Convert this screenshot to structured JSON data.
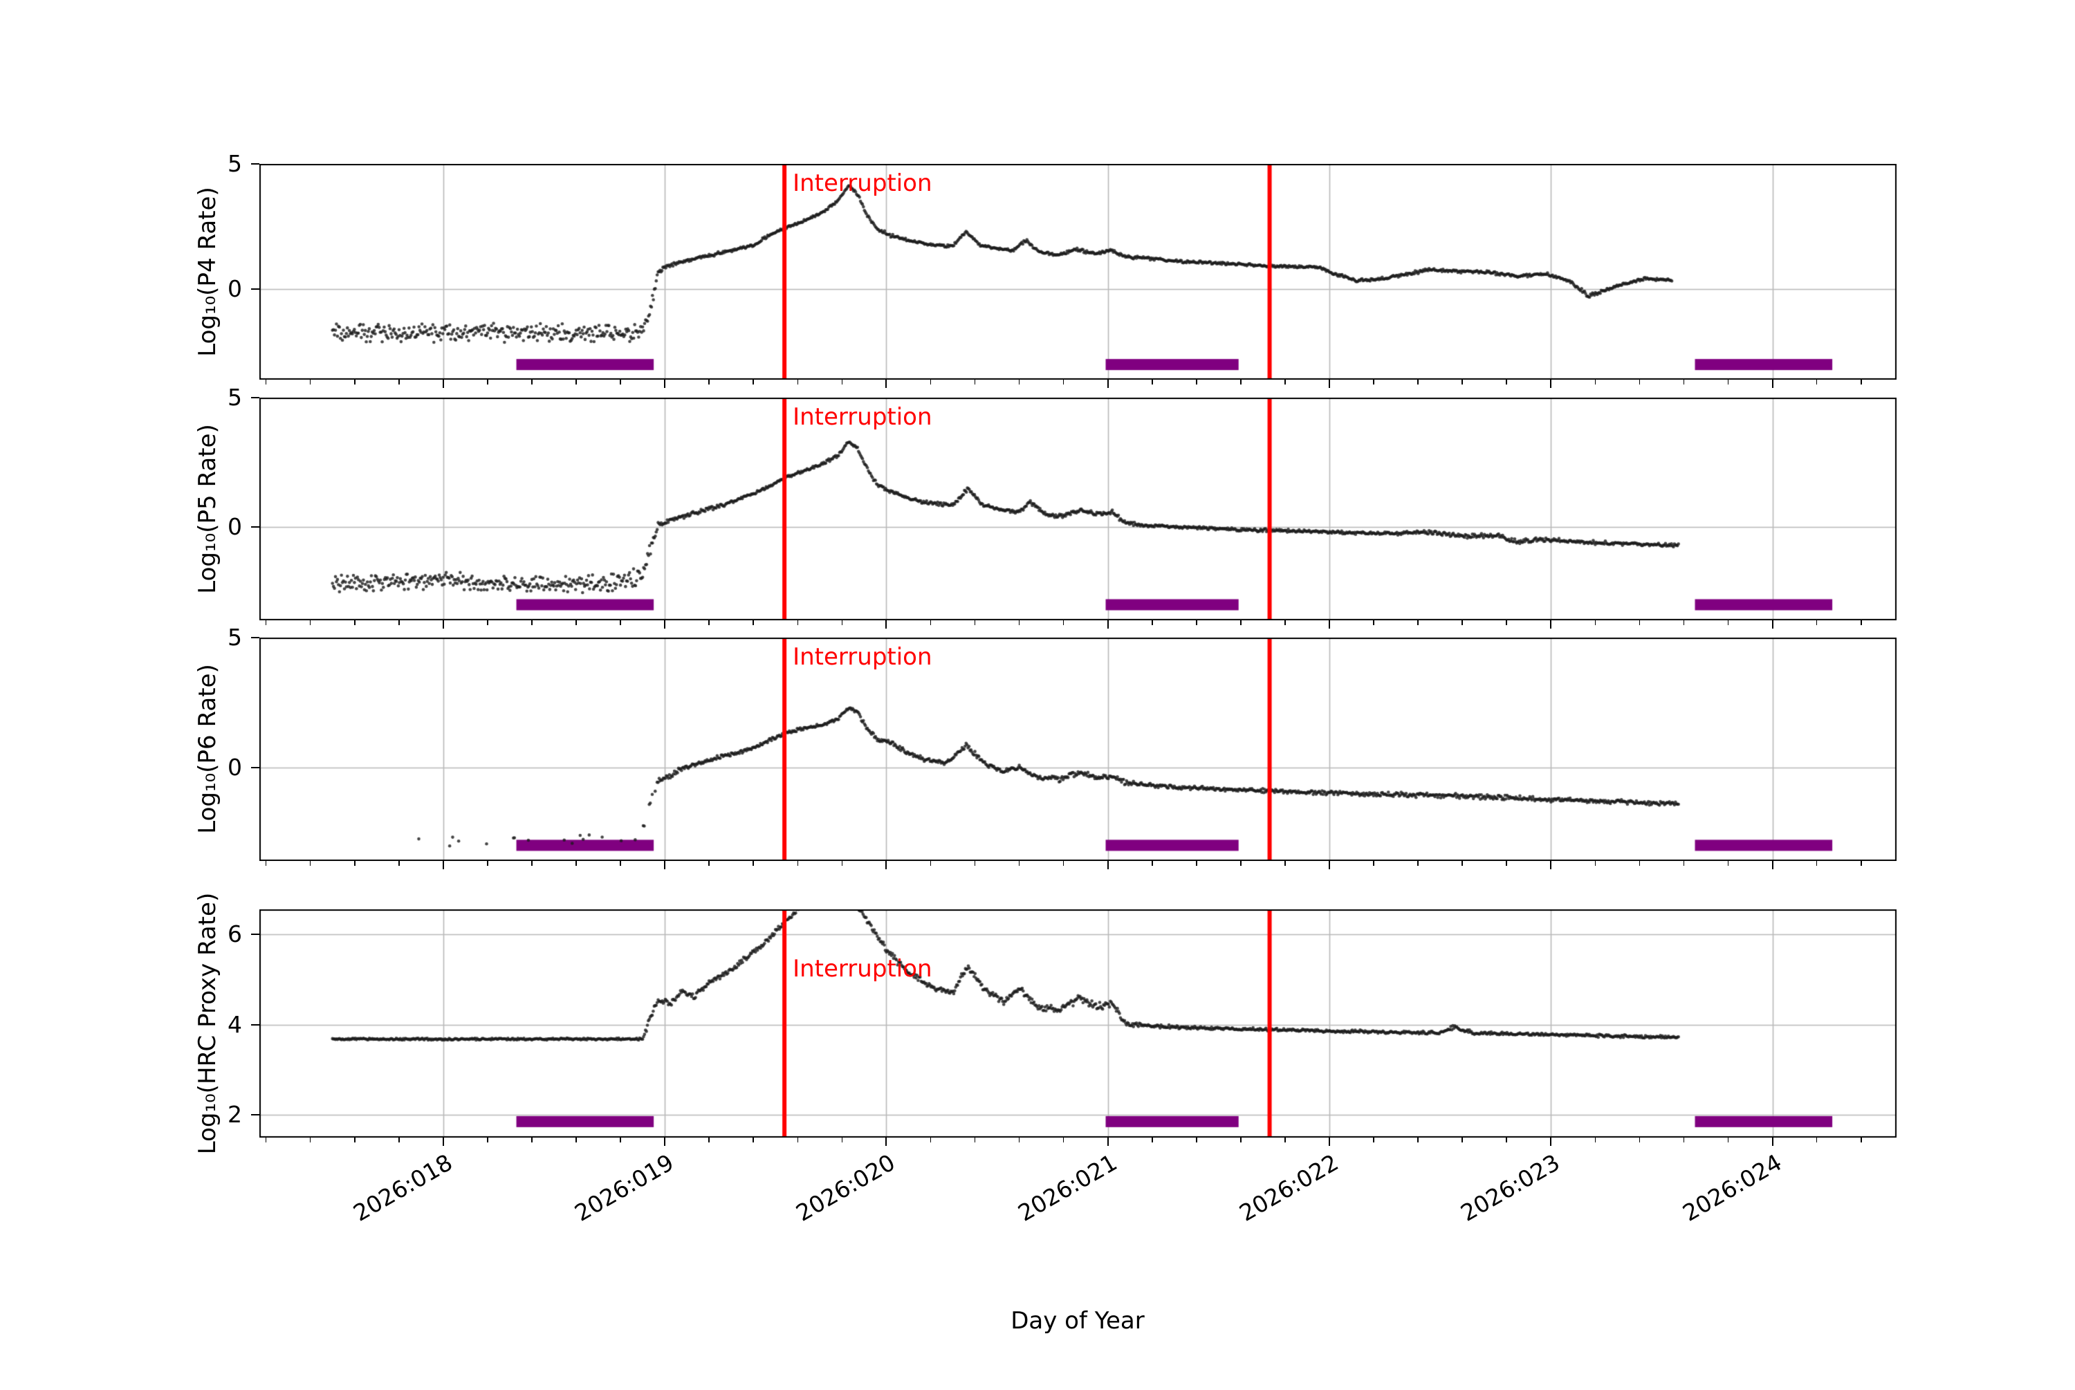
{
  "figure": {
    "xlabel": "Day of Year",
    "background": "#ffffff",
    "x_range": [
      17.17,
      24.56
    ],
    "x_major_ticks": [
      {
        "value": 18,
        "label": "2026:018"
      },
      {
        "value": 19,
        "label": "2026:019"
      },
      {
        "value": 20,
        "label": "2026:020"
      },
      {
        "value": 21,
        "label": "2026:021"
      },
      {
        "value": 22,
        "label": "2026:022"
      },
      {
        "value": 23,
        "label": "2026:023"
      },
      {
        "value": 24,
        "label": "2026:024"
      }
    ],
    "x_minor_tick_step": 0.2,
    "grid": true,
    "grid_color": "#b8b8b8",
    "marker_color": "#1a1a1a",
    "annotation_label": "Interruption",
    "annotation_color": "#ff0000",
    "interruption_lines_x": [
      19.54,
      21.73
    ],
    "support_bar_color": "#800080",
    "support_bar_x_ranges": [
      [
        18.33,
        18.95
      ],
      [
        20.99,
        21.59
      ],
      [
        23.65,
        24.27
      ]
    ]
  },
  "chart_data": [
    {
      "type": "scatter",
      "ylabel": "Log₁₀(P4 Rate)",
      "ylim": [
        -3.6,
        5
      ],
      "y_ticks": [
        0,
        5
      ],
      "annotation_y_frac": 0.025,
      "keypoints": [
        [
          17.5,
          -1.75,
          0.33
        ],
        [
          18.2,
          -1.72,
          0.33
        ],
        [
          18.6,
          -1.78,
          0.33
        ],
        [
          18.9,
          -1.7,
          0.33
        ],
        [
          18.94,
          -0.6,
          0.25
        ],
        [
          18.97,
          0.7,
          0.1
        ],
        [
          19.0,
          0.9,
          0.06
        ],
        [
          19.06,
          1.05,
          0.05
        ],
        [
          19.15,
          1.25,
          0.05
        ],
        [
          19.25,
          1.45,
          0.06
        ],
        [
          19.32,
          1.6,
          0.05
        ],
        [
          19.4,
          1.75,
          0.05
        ],
        [
          19.46,
          2.1,
          0.05
        ],
        [
          19.54,
          2.45,
          0.05
        ],
        [
          19.62,
          2.7,
          0.05
        ],
        [
          19.7,
          3.0,
          0.05
        ],
        [
          19.78,
          3.5,
          0.05
        ],
        [
          19.83,
          4.15,
          0.04
        ],
        [
          19.87,
          3.8,
          0.05
        ],
        [
          19.91,
          3.0,
          0.06
        ],
        [
          19.96,
          2.4,
          0.06
        ],
        [
          20.02,
          2.15,
          0.06
        ],
        [
          20.1,
          1.95,
          0.05
        ],
        [
          20.2,
          1.78,
          0.05
        ],
        [
          20.3,
          1.72,
          0.05
        ],
        [
          20.36,
          2.3,
          0.06
        ],
        [
          20.42,
          1.78,
          0.05
        ],
        [
          20.5,
          1.62,
          0.05
        ],
        [
          20.57,
          1.55,
          0.05
        ],
        [
          20.63,
          1.95,
          0.06
        ],
        [
          20.69,
          1.5,
          0.05
        ],
        [
          20.78,
          1.38,
          0.06
        ],
        [
          20.87,
          1.6,
          0.07
        ],
        [
          20.94,
          1.42,
          0.06
        ],
        [
          21.02,
          1.55,
          0.06
        ],
        [
          21.08,
          1.3,
          0.05
        ],
        [
          21.2,
          1.22,
          0.05
        ],
        [
          21.35,
          1.1,
          0.05
        ],
        [
          21.55,
          1.02,
          0.05
        ],
        [
          21.75,
          0.92,
          0.05
        ],
        [
          21.95,
          0.88,
          0.05
        ],
        [
          22.03,
          0.6,
          0.06
        ],
        [
          22.12,
          0.35,
          0.07
        ],
        [
          22.22,
          0.4,
          0.06
        ],
        [
          22.32,
          0.55,
          0.06
        ],
        [
          22.45,
          0.78,
          0.06
        ],
        [
          22.58,
          0.72,
          0.05
        ],
        [
          22.72,
          0.68,
          0.06
        ],
        [
          22.85,
          0.52,
          0.07
        ],
        [
          22.98,
          0.62,
          0.06
        ],
        [
          23.08,
          0.35,
          0.06
        ],
        [
          23.17,
          -0.28,
          0.08
        ],
        [
          23.24,
          -0.05,
          0.07
        ],
        [
          23.32,
          0.18,
          0.06
        ],
        [
          23.42,
          0.42,
          0.05
        ],
        [
          23.55,
          0.35,
          0.05
        ]
      ]
    },
    {
      "type": "scatter",
      "ylabel": "Log₁₀(P5 Rate)",
      "ylim": [
        -3.6,
        5
      ],
      "y_ticks": [
        0,
        5
      ],
      "annotation_y_frac": 0.025,
      "keypoints": [
        [
          17.5,
          -2.2,
          0.3
        ],
        [
          18.0,
          -2.05,
          0.3
        ],
        [
          18.4,
          -2.25,
          0.3
        ],
        [
          18.75,
          -2.15,
          0.32
        ],
        [
          18.9,
          -1.9,
          0.32
        ],
        [
          18.94,
          -0.8,
          0.25
        ],
        [
          18.97,
          0.1,
          0.1
        ],
        [
          19.02,
          0.25,
          0.08
        ],
        [
          19.1,
          0.45,
          0.08
        ],
        [
          19.2,
          0.7,
          0.07
        ],
        [
          19.3,
          0.95,
          0.06
        ],
        [
          19.4,
          1.3,
          0.06
        ],
        [
          19.48,
          1.6,
          0.05
        ],
        [
          19.54,
          1.9,
          0.05
        ],
        [
          19.62,
          2.15,
          0.05
        ],
        [
          19.7,
          2.4,
          0.05
        ],
        [
          19.78,
          2.75,
          0.05
        ],
        [
          19.83,
          3.3,
          0.04
        ],
        [
          19.87,
          3.05,
          0.05
        ],
        [
          19.91,
          2.3,
          0.07
        ],
        [
          19.96,
          1.6,
          0.08
        ],
        [
          20.02,
          1.4,
          0.07
        ],
        [
          20.1,
          1.1,
          0.06
        ],
        [
          20.2,
          0.92,
          0.06
        ],
        [
          20.3,
          0.85,
          0.06
        ],
        [
          20.37,
          1.5,
          0.07
        ],
        [
          20.43,
          0.88,
          0.06
        ],
        [
          20.52,
          0.65,
          0.06
        ],
        [
          20.6,
          0.58,
          0.07
        ],
        [
          20.65,
          0.95,
          0.08
        ],
        [
          20.72,
          0.5,
          0.07
        ],
        [
          20.8,
          0.42,
          0.09
        ],
        [
          20.88,
          0.68,
          0.09
        ],
        [
          20.95,
          0.48,
          0.09
        ],
        [
          21.02,
          0.58,
          0.08
        ],
        [
          21.08,
          0.15,
          0.06
        ],
        [
          21.2,
          0.05,
          0.05
        ],
        [
          21.4,
          -0.02,
          0.05
        ],
        [
          21.6,
          -0.1,
          0.05
        ],
        [
          21.85,
          -0.15,
          0.05
        ],
        [
          22.1,
          -0.22,
          0.05
        ],
        [
          22.3,
          -0.26,
          0.06
        ],
        [
          22.45,
          -0.18,
          0.07
        ],
        [
          22.6,
          -0.35,
          0.07
        ],
        [
          22.75,
          -0.32,
          0.08
        ],
        [
          22.85,
          -0.58,
          0.09
        ],
        [
          22.95,
          -0.48,
          0.07
        ],
        [
          23.1,
          -0.55,
          0.06
        ],
        [
          23.25,
          -0.62,
          0.07
        ],
        [
          23.4,
          -0.66,
          0.06
        ],
        [
          23.58,
          -0.7,
          0.06
        ]
      ]
    },
    {
      "type": "scatter",
      "ylabel": "Log₁₀(P6 Rate)",
      "ylim": [
        -3.6,
        5
      ],
      "y_ticks": [
        0,
        5
      ],
      "annotation_y_frac": 0.025,
      "keypoints": [
        [
          17.75,
          -2.8,
          0.18,
          0.05
        ],
        [
          18.2,
          -2.85,
          0.18,
          0.05
        ],
        [
          18.6,
          -2.8,
          0.18,
          0.06
        ],
        [
          18.88,
          -2.75,
          0.2,
          0.08
        ],
        [
          18.93,
          -1.6,
          0.25,
          0.5
        ],
        [
          18.97,
          -0.5,
          0.12,
          1
        ],
        [
          19.03,
          -0.3,
          0.1
        ],
        [
          19.08,
          0.0,
          0.09
        ],
        [
          19.15,
          0.15,
          0.08
        ],
        [
          19.25,
          0.4,
          0.07
        ],
        [
          19.35,
          0.6,
          0.07
        ],
        [
          19.45,
          0.95,
          0.06
        ],
        [
          19.54,
          1.3,
          0.06
        ],
        [
          19.62,
          1.5,
          0.06
        ],
        [
          19.7,
          1.62,
          0.06
        ],
        [
          19.78,
          1.85,
          0.06
        ],
        [
          19.83,
          2.3,
          0.05
        ],
        [
          19.87,
          2.15,
          0.06
        ],
        [
          19.91,
          1.5,
          0.08
        ],
        [
          19.96,
          1.1,
          0.08
        ],
        [
          20.03,
          0.9,
          0.08
        ],
        [
          20.1,
          0.55,
          0.08
        ],
        [
          20.18,
          0.3,
          0.08
        ],
        [
          20.27,
          0.18,
          0.08
        ],
        [
          20.36,
          0.85,
          0.08
        ],
        [
          20.44,
          0.18,
          0.08
        ],
        [
          20.53,
          -0.18,
          0.08
        ],
        [
          20.6,
          0.02,
          0.09
        ],
        [
          20.68,
          -0.35,
          0.08
        ],
        [
          20.78,
          -0.45,
          0.1
        ],
        [
          20.87,
          -0.18,
          0.1
        ],
        [
          20.95,
          -0.42,
          0.1
        ],
        [
          21.02,
          -0.32,
          0.09
        ],
        [
          21.08,
          -0.58,
          0.08
        ],
        [
          21.2,
          -0.7,
          0.07
        ],
        [
          21.4,
          -0.8,
          0.07
        ],
        [
          21.65,
          -0.88,
          0.07
        ],
        [
          21.9,
          -0.95,
          0.07
        ],
        [
          22.15,
          -1.02,
          0.08
        ],
        [
          22.4,
          -1.06,
          0.08
        ],
        [
          22.65,
          -1.12,
          0.09
        ],
        [
          22.9,
          -1.2,
          0.09
        ],
        [
          23.1,
          -1.26,
          0.08
        ],
        [
          23.3,
          -1.32,
          0.08
        ],
        [
          23.58,
          -1.4,
          0.08
        ]
      ]
    },
    {
      "type": "scatter",
      "ylabel": "Log₁₀(HRC Proxy Rate)",
      "ylim": [
        1.5,
        6.55
      ],
      "y_ticks": [
        2,
        4,
        6
      ],
      "annotation_y_frac": 0.2,
      "keypoints": [
        [
          17.5,
          3.68,
          0.02
        ],
        [
          18.4,
          3.68,
          0.02
        ],
        [
          18.9,
          3.68,
          0.02
        ],
        [
          18.93,
          4.1,
          0.1
        ],
        [
          18.97,
          4.55,
          0.06
        ],
        [
          19.03,
          4.48,
          0.06
        ],
        [
          19.08,
          4.75,
          0.06
        ],
        [
          19.13,
          4.62,
          0.07
        ],
        [
          19.2,
          4.95,
          0.06
        ],
        [
          19.28,
          5.15,
          0.05
        ],
        [
          19.36,
          5.45,
          0.05
        ],
        [
          19.45,
          5.8,
          0.05
        ],
        [
          19.54,
          6.25,
          0.05
        ],
        [
          19.6,
          6.55,
          0.05
        ],
        [
          19.68,
          6.85,
          0.05
        ],
        [
          19.76,
          7.0,
          0.05
        ],
        [
          19.84,
          6.8,
          0.05
        ],
        [
          19.9,
          6.4,
          0.06
        ],
        [
          19.95,
          6.05,
          0.06
        ],
        [
          20.0,
          5.65,
          0.07
        ],
        [
          20.06,
          5.35,
          0.06
        ],
        [
          20.13,
          5.05,
          0.06
        ],
        [
          20.22,
          4.8,
          0.06
        ],
        [
          20.3,
          4.72,
          0.06
        ],
        [
          20.37,
          5.3,
          0.07
        ],
        [
          20.44,
          4.78,
          0.06
        ],
        [
          20.53,
          4.5,
          0.06
        ],
        [
          20.6,
          4.8,
          0.07
        ],
        [
          20.68,
          4.4,
          0.06
        ],
        [
          20.78,
          4.32,
          0.08
        ],
        [
          20.87,
          4.58,
          0.08
        ],
        [
          20.95,
          4.38,
          0.08
        ],
        [
          21.02,
          4.48,
          0.07
        ],
        [
          21.08,
          4.02,
          0.05
        ],
        [
          21.2,
          3.97,
          0.04
        ],
        [
          21.45,
          3.92,
          0.03
        ],
        [
          21.7,
          3.89,
          0.03
        ],
        [
          22.0,
          3.86,
          0.03
        ],
        [
          22.3,
          3.83,
          0.03
        ],
        [
          22.5,
          3.82,
          0.03
        ],
        [
          22.57,
          3.95,
          0.05
        ],
        [
          22.65,
          3.81,
          0.03
        ],
        [
          22.9,
          3.79,
          0.03
        ],
        [
          23.15,
          3.76,
          0.03
        ],
        [
          23.35,
          3.74,
          0.03
        ],
        [
          23.58,
          3.72,
          0.03
        ]
      ]
    }
  ]
}
